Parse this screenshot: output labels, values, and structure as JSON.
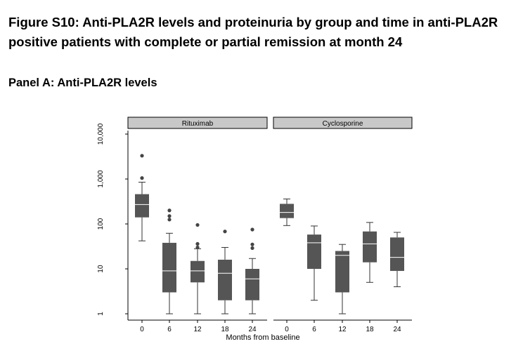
{
  "figure": {
    "title": "Figure S10: Anti-PLA2R levels and proteinuria by group and time in anti-PLA2R positive patients with complete or partial remission at month 24",
    "panel_title": "Panel A: Anti-PLA2R levels"
  },
  "colors": {
    "box_fill": "#555555",
    "median_line": "#ffffff",
    "whisker": "#333333",
    "outlier": "#444444",
    "strip_fill": "#c8c8c8",
    "axis": "#000000"
  },
  "chart_data": {
    "type": "box",
    "xlabel": "Months from baseline",
    "ylabel": "",
    "yscale": "log",
    "ylim": [
      0.8,
      14000
    ],
    "y_ticks": [
      {
        "value": 1,
        "label": "1"
      },
      {
        "value": 10,
        "label": "10"
      },
      {
        "value": 100,
        "label": "100"
      },
      {
        "value": 1000,
        "label": "1,000"
      },
      {
        "value": 10000,
        "label": "10,000"
      }
    ],
    "categories": [
      "0",
      "6",
      "12",
      "18",
      "24"
    ],
    "panels": [
      {
        "name": "Rituximab",
        "boxes": [
          {
            "x": "0",
            "min": 42,
            "q1": 140,
            "median": 270,
            "q3": 460,
            "max": 850,
            "outliers": [
              1050,
              3300
            ]
          },
          {
            "x": "6",
            "min": 1,
            "q1": 3,
            "median": 9,
            "q3": 38,
            "max": 62,
            "outliers": [
              125,
              150,
              200
            ]
          },
          {
            "x": "12",
            "min": 1,
            "q1": 5,
            "median": 9,
            "q3": 15,
            "max": 28,
            "outliers": [
              30,
              36,
              95
            ]
          },
          {
            "x": "18",
            "min": 1,
            "q1": 2,
            "median": 8,
            "q3": 16,
            "max": 30,
            "outliers": [
              68
            ]
          },
          {
            "x": "24",
            "min": 1,
            "q1": 2,
            "median": 6,
            "q3": 10,
            "max": 17,
            "outliers": [
              29,
              35,
              75
            ]
          }
        ]
      },
      {
        "name": "Cyclosporine",
        "boxes": [
          {
            "x": "0",
            "min": 92,
            "q1": 135,
            "median": 180,
            "q3": 280,
            "max": 360,
            "outliers": []
          },
          {
            "x": "6",
            "min": 2,
            "q1": 10,
            "median": 38,
            "q3": 58,
            "max": 90,
            "outliers": []
          },
          {
            "x": "12",
            "min": 1,
            "q1": 3,
            "median": 20,
            "q3": 25,
            "max": 35,
            "outliers": []
          },
          {
            "x": "18",
            "min": 5,
            "q1": 14,
            "median": 36,
            "q3": 68,
            "max": 108,
            "outliers": []
          },
          {
            "x": "24",
            "min": 4,
            "q1": 9,
            "median": 18,
            "q3": 50,
            "max": 65,
            "outliers": []
          }
        ]
      }
    ]
  }
}
